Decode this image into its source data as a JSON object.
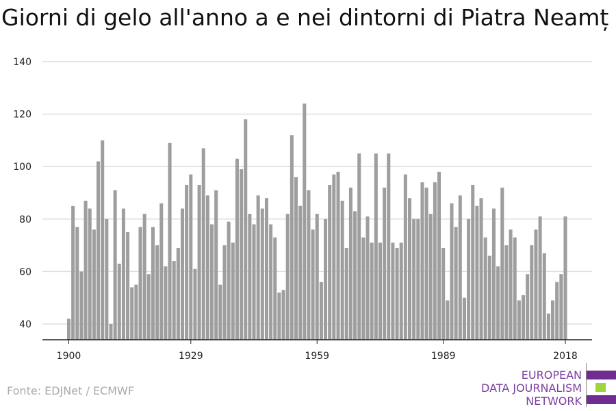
{
  "title": "Giorni di gelo all'anno a e nei dintorni di Piatra Neamț",
  "source": "Fonte: EDJNet / ECMWF",
  "logo": {
    "lines": [
      "EUROPEAN",
      "DATA JOURNALISM",
      "NETWORK"
    ],
    "colors": {
      "purple": "#6f2c91",
      "green": "#9fd43a",
      "text": "#7b3fa0"
    }
  },
  "chart_data": {
    "type": "bar",
    "title": "Giorni di gelo all'anno a e nei dintorni di Piatra Neamț",
    "xlabel": "",
    "ylabel": "",
    "x_tick_labels": [
      "1900",
      "1929",
      "1959",
      "1989",
      "2018"
    ],
    "y_tick_labels": [
      "40",
      "60",
      "80",
      "100",
      "120",
      "140"
    ],
    "ylim": [
      34,
      140
    ],
    "grid": true,
    "bar_color": "#9e9e9e",
    "categories": [
      1900,
      1901,
      1902,
      1903,
      1904,
      1905,
      1906,
      1907,
      1908,
      1909,
      1910,
      1911,
      1912,
      1913,
      1914,
      1915,
      1916,
      1917,
      1918,
      1919,
      1920,
      1921,
      1922,
      1923,
      1924,
      1925,
      1926,
      1927,
      1928,
      1929,
      1930,
      1931,
      1932,
      1933,
      1934,
      1935,
      1936,
      1937,
      1938,
      1939,
      1940,
      1941,
      1942,
      1943,
      1944,
      1945,
      1946,
      1947,
      1948,
      1949,
      1950,
      1951,
      1952,
      1953,
      1954,
      1955,
      1956,
      1957,
      1958,
      1959,
      1960,
      1961,
      1962,
      1963,
      1964,
      1965,
      1966,
      1967,
      1968,
      1969,
      1970,
      1971,
      1972,
      1973,
      1974,
      1975,
      1976,
      1977,
      1978,
      1979,
      1980,
      1981,
      1982,
      1983,
      1984,
      1985,
      1986,
      1987,
      1988,
      1989,
      1990,
      1991,
      1992,
      1993,
      1994,
      1995,
      1996,
      1997,
      1998,
      1999,
      2000,
      2001,
      2002,
      2003,
      2004,
      2005,
      2006,
      2007,
      2008,
      2009,
      2010,
      2011,
      2012,
      2013,
      2014,
      2015,
      2016,
      2017,
      2018
    ],
    "values": [
      42,
      85,
      77,
      60,
      87,
      84,
      76,
      102,
      110,
      80,
      40,
      91,
      63,
      84,
      75,
      54,
      55,
      77,
      82,
      59,
      77,
      70,
      86,
      62,
      109,
      64,
      69,
      84,
      93,
      97,
      61,
      93,
      107,
      89,
      78,
      91,
      55,
      70,
      79,
      71,
      103,
      99,
      118,
      82,
      78,
      89,
      84,
      88,
      78,
      73,
      52,
      53,
      82,
      112,
      96,
      85,
      124,
      91,
      76,
      82,
      56,
      80,
      93,
      97,
      98,
      87,
      69,
      92,
      83,
      105,
      73,
      81,
      71,
      105,
      71,
      92,
      105,
      71,
      69,
      71,
      97,
      88,
      80,
      80,
      94,
      92,
      82,
      94,
      98,
      69,
      49,
      86,
      77,
      89,
      50,
      80,
      93,
      85,
      88,
      73,
      66,
      84,
      62,
      92,
      70,
      76,
      73,
      49,
      51,
      59,
      70,
      76,
      81,
      67,
      44,
      49,
      56,
      59,
      81
    ]
  }
}
